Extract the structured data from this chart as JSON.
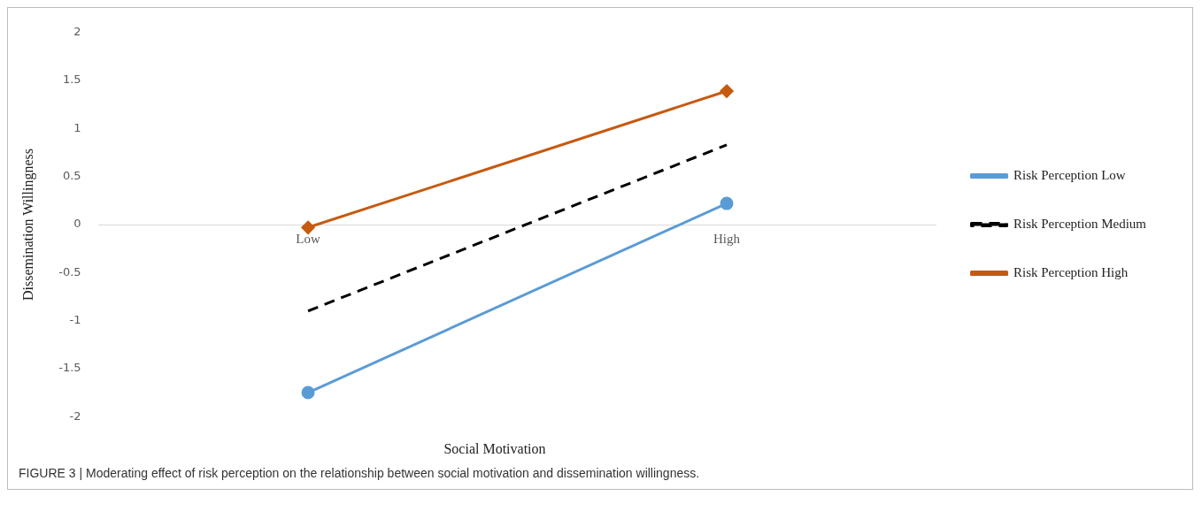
{
  "chart_data": {
    "type": "line",
    "xlabel": "Social Motivation",
    "ylabel": "Dissemination Willingness",
    "categories": [
      "Low",
      "High"
    ],
    "series": [
      {
        "name": "Risk Perception Low",
        "color": "#5b9bd5",
        "values": [
          -1.75,
          0.22
        ],
        "marker": "circle",
        "line_style": "solid"
      },
      {
        "name": "Risk Perception Medium",
        "color": "#000000",
        "values": [
          -0.9,
          0.83
        ],
        "marker": "none",
        "line_style": "dashed"
      },
      {
        "name": "Risk Perception High",
        "color": "#c55a11",
        "values": [
          -0.03,
          1.39
        ],
        "marker": "diamond",
        "line_style": "solid"
      }
    ],
    "ylim": [
      -2,
      2
    ],
    "yticks": [
      -2,
      -1.5,
      -1,
      -0.5,
      0,
      0.5,
      1,
      1.5,
      2
    ],
    "grid": false,
    "legend": "right",
    "annotations": [
      "FIGURE 3 | Moderating effect of risk perception on the relationship between social motivation and dissemination willingness."
    ]
  }
}
